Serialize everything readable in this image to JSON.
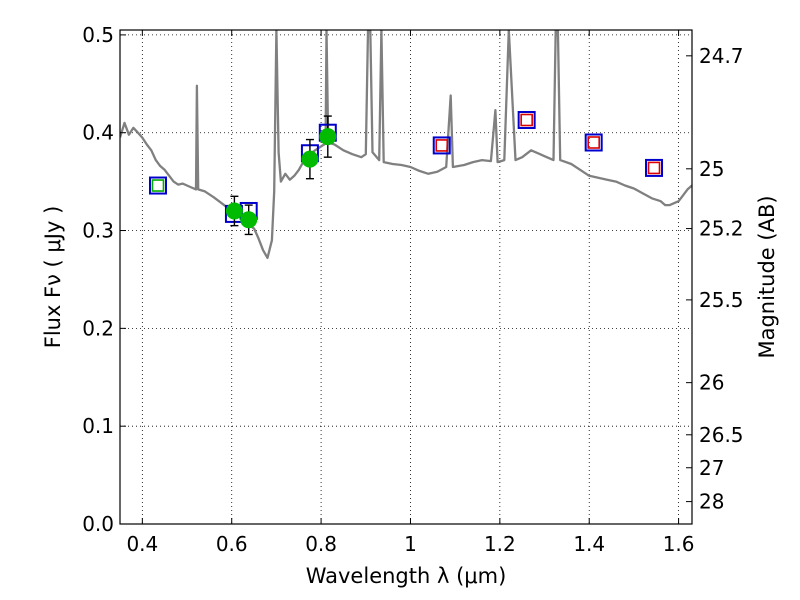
{
  "chart_data": {
    "type": "scatter",
    "xlabel": "Wavelength  λ (μm)",
    "ylabel": "Flux  Fν  ( μJy )",
    "y2label": "Magnitude (AB)",
    "xlim": [
      0.35,
      1.63
    ],
    "ylim": [
      0.0,
      0.505
    ],
    "grid": true,
    "x_ticks": [
      0.4,
      0.6,
      0.8,
      1.0,
      1.2,
      1.4,
      1.6
    ],
    "x_tick_labels": [
      "0.4",
      "0.6",
      "0.8",
      "1",
      "1.2",
      "1.4",
      "1.6"
    ],
    "y_ticks": [
      0.0,
      0.1,
      0.2,
      0.3,
      0.4,
      0.5
    ],
    "y_tick_labels": [
      "0.0",
      "0.1",
      "0.2",
      "0.3",
      "0.4",
      "0.5"
    ],
    "mag_ticks": [
      {
        "label": "24.7",
        "flux": 0.4786
      },
      {
        "label": "25",
        "flux": 0.3631
      },
      {
        "label": "25.2",
        "flux": 0.302
      },
      {
        "label": "25.5",
        "flux": 0.2291
      },
      {
        "label": "26",
        "flux": 0.1445
      },
      {
        "label": "26.5",
        "flux": 0.0912
      },
      {
        "label": "27",
        "flux": 0.0575
      },
      {
        "label": "28",
        "flux": 0.0229
      }
    ],
    "model_spectrum": {
      "color": "#808080",
      "points": [
        [
          0.35,
          0.395
        ],
        [
          0.36,
          0.41
        ],
        [
          0.37,
          0.398
        ],
        [
          0.38,
          0.405
        ],
        [
          0.39,
          0.4
        ],
        [
          0.4,
          0.395
        ],
        [
          0.41,
          0.388
        ],
        [
          0.42,
          0.382
        ],
        [
          0.43,
          0.372
        ],
        [
          0.44,
          0.366
        ],
        [
          0.45,
          0.362
        ],
        [
          0.46,
          0.356
        ],
        [
          0.47,
          0.35
        ],
        [
          0.48,
          0.347
        ],
        [
          0.49,
          0.348
        ],
        [
          0.5,
          0.346
        ],
        [
          0.51,
          0.344
        ],
        [
          0.52,
          0.342
        ],
        [
          0.522,
          0.448
        ],
        [
          0.525,
          0.342
        ],
        [
          0.54,
          0.34
        ],
        [
          0.56,
          0.334
        ],
        [
          0.58,
          0.327
        ],
        [
          0.6,
          0.32
        ],
        [
          0.62,
          0.313
        ],
        [
          0.64,
          0.305
        ],
        [
          0.65,
          0.302
        ],
        [
          0.66,
          0.292
        ],
        [
          0.67,
          0.28
        ],
        [
          0.68,
          0.272
        ],
        [
          0.69,
          0.29
        ],
        [
          0.695,
          0.34
        ],
        [
          0.7,
          0.505
        ],
        [
          0.705,
          0.38
        ],
        [
          0.71,
          0.35
        ],
        [
          0.72,
          0.358
        ],
        [
          0.73,
          0.352
        ],
        [
          0.74,
          0.356
        ],
        [
          0.75,
          0.362
        ],
        [
          0.76,
          0.37
        ],
        [
          0.77,
          0.375
        ],
        [
          0.78,
          0.38
        ],
        [
          0.79,
          0.383
        ],
        [
          0.8,
          0.386
        ],
        [
          0.81,
          0.389
        ],
        [
          0.812,
          0.505
        ],
        [
          0.816,
          0.39
        ],
        [
          0.83,
          0.388
        ],
        [
          0.85,
          0.382
        ],
        [
          0.87,
          0.378
        ],
        [
          0.89,
          0.375
        ],
        [
          0.9,
          0.378
        ],
        [
          0.905,
          0.505
        ],
        [
          0.91,
          0.505
        ],
        [
          0.915,
          0.38
        ],
        [
          0.93,
          0.372
        ],
        [
          0.935,
          0.505
        ],
        [
          0.94,
          0.37
        ],
        [
          0.96,
          0.368
        ],
        [
          0.98,
          0.367
        ],
        [
          1.0,
          0.365
        ],
        [
          1.02,
          0.361
        ],
        [
          1.04,
          0.358
        ],
        [
          1.06,
          0.36
        ],
        [
          1.08,
          0.365
        ],
        [
          1.09,
          0.438
        ],
        [
          1.095,
          0.365
        ],
        [
          1.12,
          0.367
        ],
        [
          1.14,
          0.37
        ],
        [
          1.16,
          0.372
        ],
        [
          1.18,
          0.371
        ],
        [
          1.19,
          0.423
        ],
        [
          1.195,
          0.37
        ],
        [
          1.21,
          0.372
        ],
        [
          1.22,
          0.505
        ],
        [
          1.235,
          0.372
        ],
        [
          1.25,
          0.375
        ],
        [
          1.27,
          0.382
        ],
        [
          1.29,
          0.378
        ],
        [
          1.3,
          0.376
        ],
        [
          1.32,
          0.372
        ],
        [
          1.325,
          0.505
        ],
        [
          1.33,
          0.505
        ],
        [
          1.335,
          0.372
        ],
        [
          1.36,
          0.368
        ],
        [
          1.38,
          0.362
        ],
        [
          1.4,
          0.356
        ],
        [
          1.42,
          0.354
        ],
        [
          1.44,
          0.352
        ],
        [
          1.46,
          0.35
        ],
        [
          1.48,
          0.346
        ],
        [
          1.5,
          0.343
        ],
        [
          1.52,
          0.338
        ],
        [
          1.54,
          0.333
        ],
        [
          1.56,
          0.33
        ],
        [
          1.57,
          0.326
        ],
        [
          1.58,
          0.326
        ],
        [
          1.6,
          0.33
        ],
        [
          1.61,
          0.336
        ],
        [
          1.62,
          0.342
        ],
        [
          1.63,
          0.346
        ]
      ]
    },
    "series": [
      {
        "marker": "square",
        "color": "#0000cc",
        "points": [
          [
            0.435,
            0.346
          ],
          [
            0.605,
            0.317
          ],
          [
            0.638,
            0.32
          ],
          [
            0.775,
            0.379
          ],
          [
            0.815,
            0.4
          ],
          [
            1.07,
            0.387
          ],
          [
            1.26,
            0.413
          ],
          [
            1.41,
            0.39
          ],
          [
            1.545,
            0.364
          ]
        ]
      },
      {
        "marker": "square",
        "color": "#00aa00",
        "points": [
          [
            0.435,
            0.346
          ]
        ]
      },
      {
        "marker": "square",
        "color": "#dd0000",
        "points": [
          [
            1.07,
            0.387
          ],
          [
            1.26,
            0.413
          ],
          [
            1.41,
            0.39
          ],
          [
            1.545,
            0.364
          ]
        ]
      },
      {
        "marker": "circle",
        "color": "#00bb00",
        "points": [
          {
            "x": 0.606,
            "y": 0.32,
            "err": 0.015
          },
          {
            "x": 0.638,
            "y": 0.311,
            "err": 0.015
          },
          {
            "x": 0.775,
            "y": 0.373,
            "err": 0.02
          },
          {
            "x": 0.815,
            "y": 0.396,
            "err": 0.021
          }
        ]
      }
    ]
  }
}
